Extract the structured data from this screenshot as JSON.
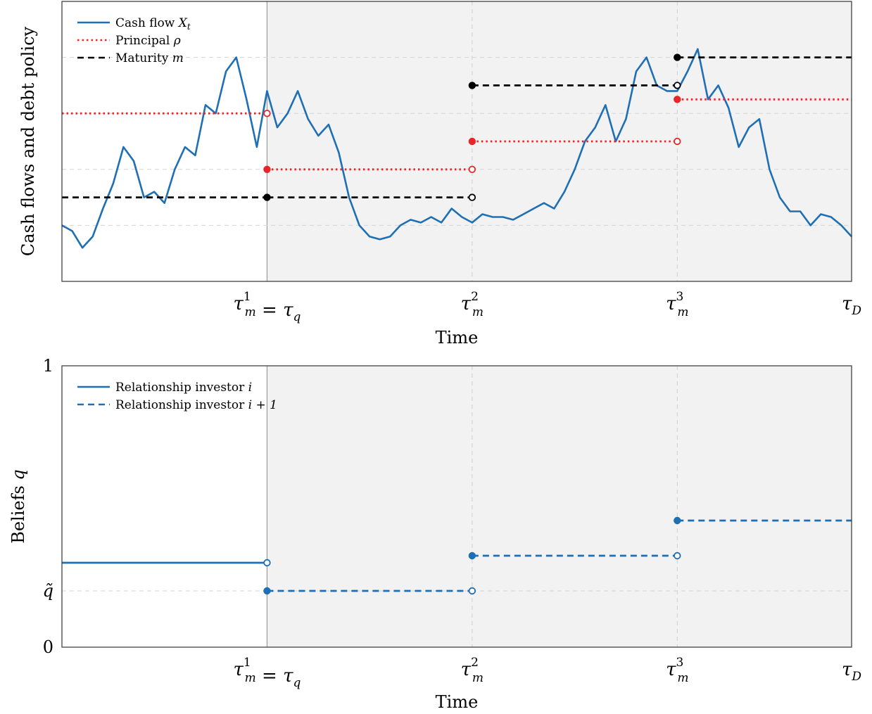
{
  "chart_data": [
    {
      "type": "line",
      "title": "",
      "xlabel": "Time",
      "ylabel": "Cash flows and debt policy",
      "x_ticks": [
        {
          "x": 1,
          "main": "τ",
          "sup": "1",
          "sub": "m",
          "rest": " = τ",
          "rest_sub": "q"
        },
        {
          "x": 2,
          "main": "τ",
          "sup": "2",
          "sub": "m",
          "rest": "",
          "rest_sub": ""
        },
        {
          "x": 3,
          "main": "τ",
          "sup": "3",
          "sub": "m",
          "rest": "",
          "rest_sub": ""
        },
        {
          "x": 3.85,
          "main": "τ",
          "sup": "",
          "sub": "D",
          "rest": "",
          "rest_sub": ""
        }
      ],
      "xlim": [
        0,
        3.85
      ],
      "ylim": [
        0,
        10
      ],
      "grid": true,
      "shaded_region_x": [
        1,
        3.85
      ],
      "legend_position": "top-left",
      "legend": [
        {
          "label": "Cash flow ",
          "math": "X",
          "math_sub": "t",
          "style": "solid",
          "color": "#1f6fb4"
        },
        {
          "label": "Principal ",
          "math": "ρ",
          "math_sub": "",
          "style": "dotted",
          "color": "#e8262a"
        },
        {
          "label": "Maturity ",
          "math": "m",
          "math_sub": "",
          "style": "dashed",
          "color": "#000000"
        }
      ],
      "series": [
        {
          "name": "Cash flow Xt",
          "style": "solid",
          "color": "#1f6fb4",
          "x": [
            0,
            0.05,
            0.1,
            0.15,
            0.2,
            0.25,
            0.3,
            0.35,
            0.4,
            0.45,
            0.5,
            0.55,
            0.6,
            0.65,
            0.7,
            0.75,
            0.8,
            0.85,
            0.9,
            0.95,
            1.0,
            1.05,
            1.1,
            1.15,
            1.2,
            1.25,
            1.3,
            1.35,
            1.4,
            1.45,
            1.5,
            1.55,
            1.6,
            1.65,
            1.7,
            1.75,
            1.8,
            1.85,
            1.9,
            1.95,
            2.0,
            2.05,
            2.1,
            2.15,
            2.2,
            2.25,
            2.3,
            2.35,
            2.4,
            2.45,
            2.5,
            2.55,
            2.6,
            2.65,
            2.7,
            2.75,
            2.8,
            2.85,
            2.9,
            2.95,
            3.0,
            3.05,
            3.1,
            3.15,
            3.2,
            3.25,
            3.3,
            3.35,
            3.4,
            3.45,
            3.5,
            3.55,
            3.6,
            3.65,
            3.7,
            3.75,
            3.8,
            3.85
          ],
          "values": [
            2.0,
            1.8,
            1.2,
            1.6,
            2.6,
            3.5,
            4.8,
            4.3,
            3.0,
            3.2,
            2.8,
            4.0,
            4.8,
            4.5,
            6.3,
            6.0,
            7.5,
            8.0,
            6.5,
            4.8,
            6.8,
            5.5,
            6.0,
            6.8,
            5.8,
            5.2,
            5.6,
            4.6,
            3.0,
            2.0,
            1.6,
            1.5,
            1.6,
            2.0,
            2.2,
            2.1,
            2.3,
            2.1,
            2.6,
            2.3,
            2.1,
            2.4,
            2.3,
            2.3,
            2.2,
            2.4,
            2.6,
            2.8,
            2.6,
            3.2,
            4.0,
            5.0,
            5.5,
            6.3,
            5.0,
            5.8,
            7.5,
            8.0,
            7.0,
            6.8,
            6.8,
            7.5,
            8.3,
            6.5,
            7.0,
            6.2,
            4.8,
            5.5,
            5.8,
            4.0,
            3.0,
            2.5,
            2.5,
            2.0,
            2.4,
            2.3,
            2.0,
            1.6
          ]
        },
        {
          "name": "Principal ρ",
          "style": "dotted",
          "color": "#e8262a",
          "segments": [
            {
              "x": [
                0,
                1
              ],
              "y": 6,
              "start_marker": "none",
              "end_marker": "open"
            },
            {
              "x": [
                1,
                2
              ],
              "y": 4,
              "start_marker": "filled",
              "end_marker": "open"
            },
            {
              "x": [
                2,
                3
              ],
              "y": 5,
              "start_marker": "filled",
              "end_marker": "open"
            },
            {
              "x": [
                3,
                3.85
              ],
              "y": 6.5,
              "start_marker": "filled",
              "end_marker": "none"
            }
          ]
        },
        {
          "name": "Maturity m",
          "style": "dashed",
          "color": "#000000",
          "segments": [
            {
              "x": [
                0,
                1
              ],
              "y": 3,
              "start_marker": "none",
              "end_marker": "none"
            },
            {
              "x": [
                1,
                2
              ],
              "y": 3,
              "start_marker": "filled",
              "end_marker": "open"
            },
            {
              "x": [
                2,
                3
              ],
              "y": 7,
              "start_marker": "filled",
              "end_marker": "open"
            },
            {
              "x": [
                3,
                3.85
              ],
              "y": 8,
              "start_marker": "filled",
              "end_marker": "none"
            }
          ]
        }
      ]
    },
    {
      "type": "line",
      "title": "",
      "xlabel": "Time",
      "ylabel": "Beliefs q",
      "ylabel_main": "Beliefs ",
      "ylabel_math": "q",
      "y_ticks": [
        {
          "y": 0,
          "label": "0"
        },
        {
          "y": 0.2,
          "label": "q̃"
        },
        {
          "y": 1,
          "label": "1"
        }
      ],
      "x_ticks": [
        {
          "x": 1,
          "main": "τ",
          "sup": "1",
          "sub": "m",
          "rest": " = τ",
          "rest_sub": "q"
        },
        {
          "x": 2,
          "main": "τ",
          "sup": "2",
          "sub": "m",
          "rest": "",
          "rest_sub": ""
        },
        {
          "x": 3,
          "main": "τ",
          "sup": "3",
          "sub": "m",
          "rest": "",
          "rest_sub": ""
        },
        {
          "x": 3.85,
          "main": "τ",
          "sup": "",
          "sub": "D",
          "rest": "",
          "rest_sub": ""
        }
      ],
      "xlim": [
        0,
        3.85
      ],
      "ylim": [
        0,
        1
      ],
      "grid": true,
      "shaded_region_x": [
        1,
        3.85
      ],
      "legend_position": "top-left",
      "legend": [
        {
          "label": "Relationship investor ",
          "math": "i",
          "math_sub": "",
          "style": "solid",
          "color": "#1f6fb4"
        },
        {
          "label": "Relationship investor ",
          "math": "i + 1",
          "math_sub": "",
          "style": "dashed",
          "color": "#1f6fb4"
        }
      ],
      "series": [
        {
          "name": "Relationship investor i",
          "style": "solid",
          "color": "#1f6fb4",
          "segments": [
            {
              "x": [
                0,
                1
              ],
              "y": 0.3,
              "start_marker": "none",
              "end_marker": "open"
            }
          ]
        },
        {
          "name": "Relationship investor i+1",
          "style": "dashed",
          "color": "#1f6fb4",
          "segments": [
            {
              "x": [
                1,
                2
              ],
              "y": 0.2,
              "start_marker": "filled",
              "end_marker": "open"
            },
            {
              "x": [
                2,
                3
              ],
              "y": 0.325,
              "start_marker": "filled",
              "end_marker": "open"
            },
            {
              "x": [
                3,
                3.85
              ],
              "y": 0.45,
              "start_marker": "filled",
              "end_marker": "none"
            }
          ]
        }
      ]
    }
  ]
}
